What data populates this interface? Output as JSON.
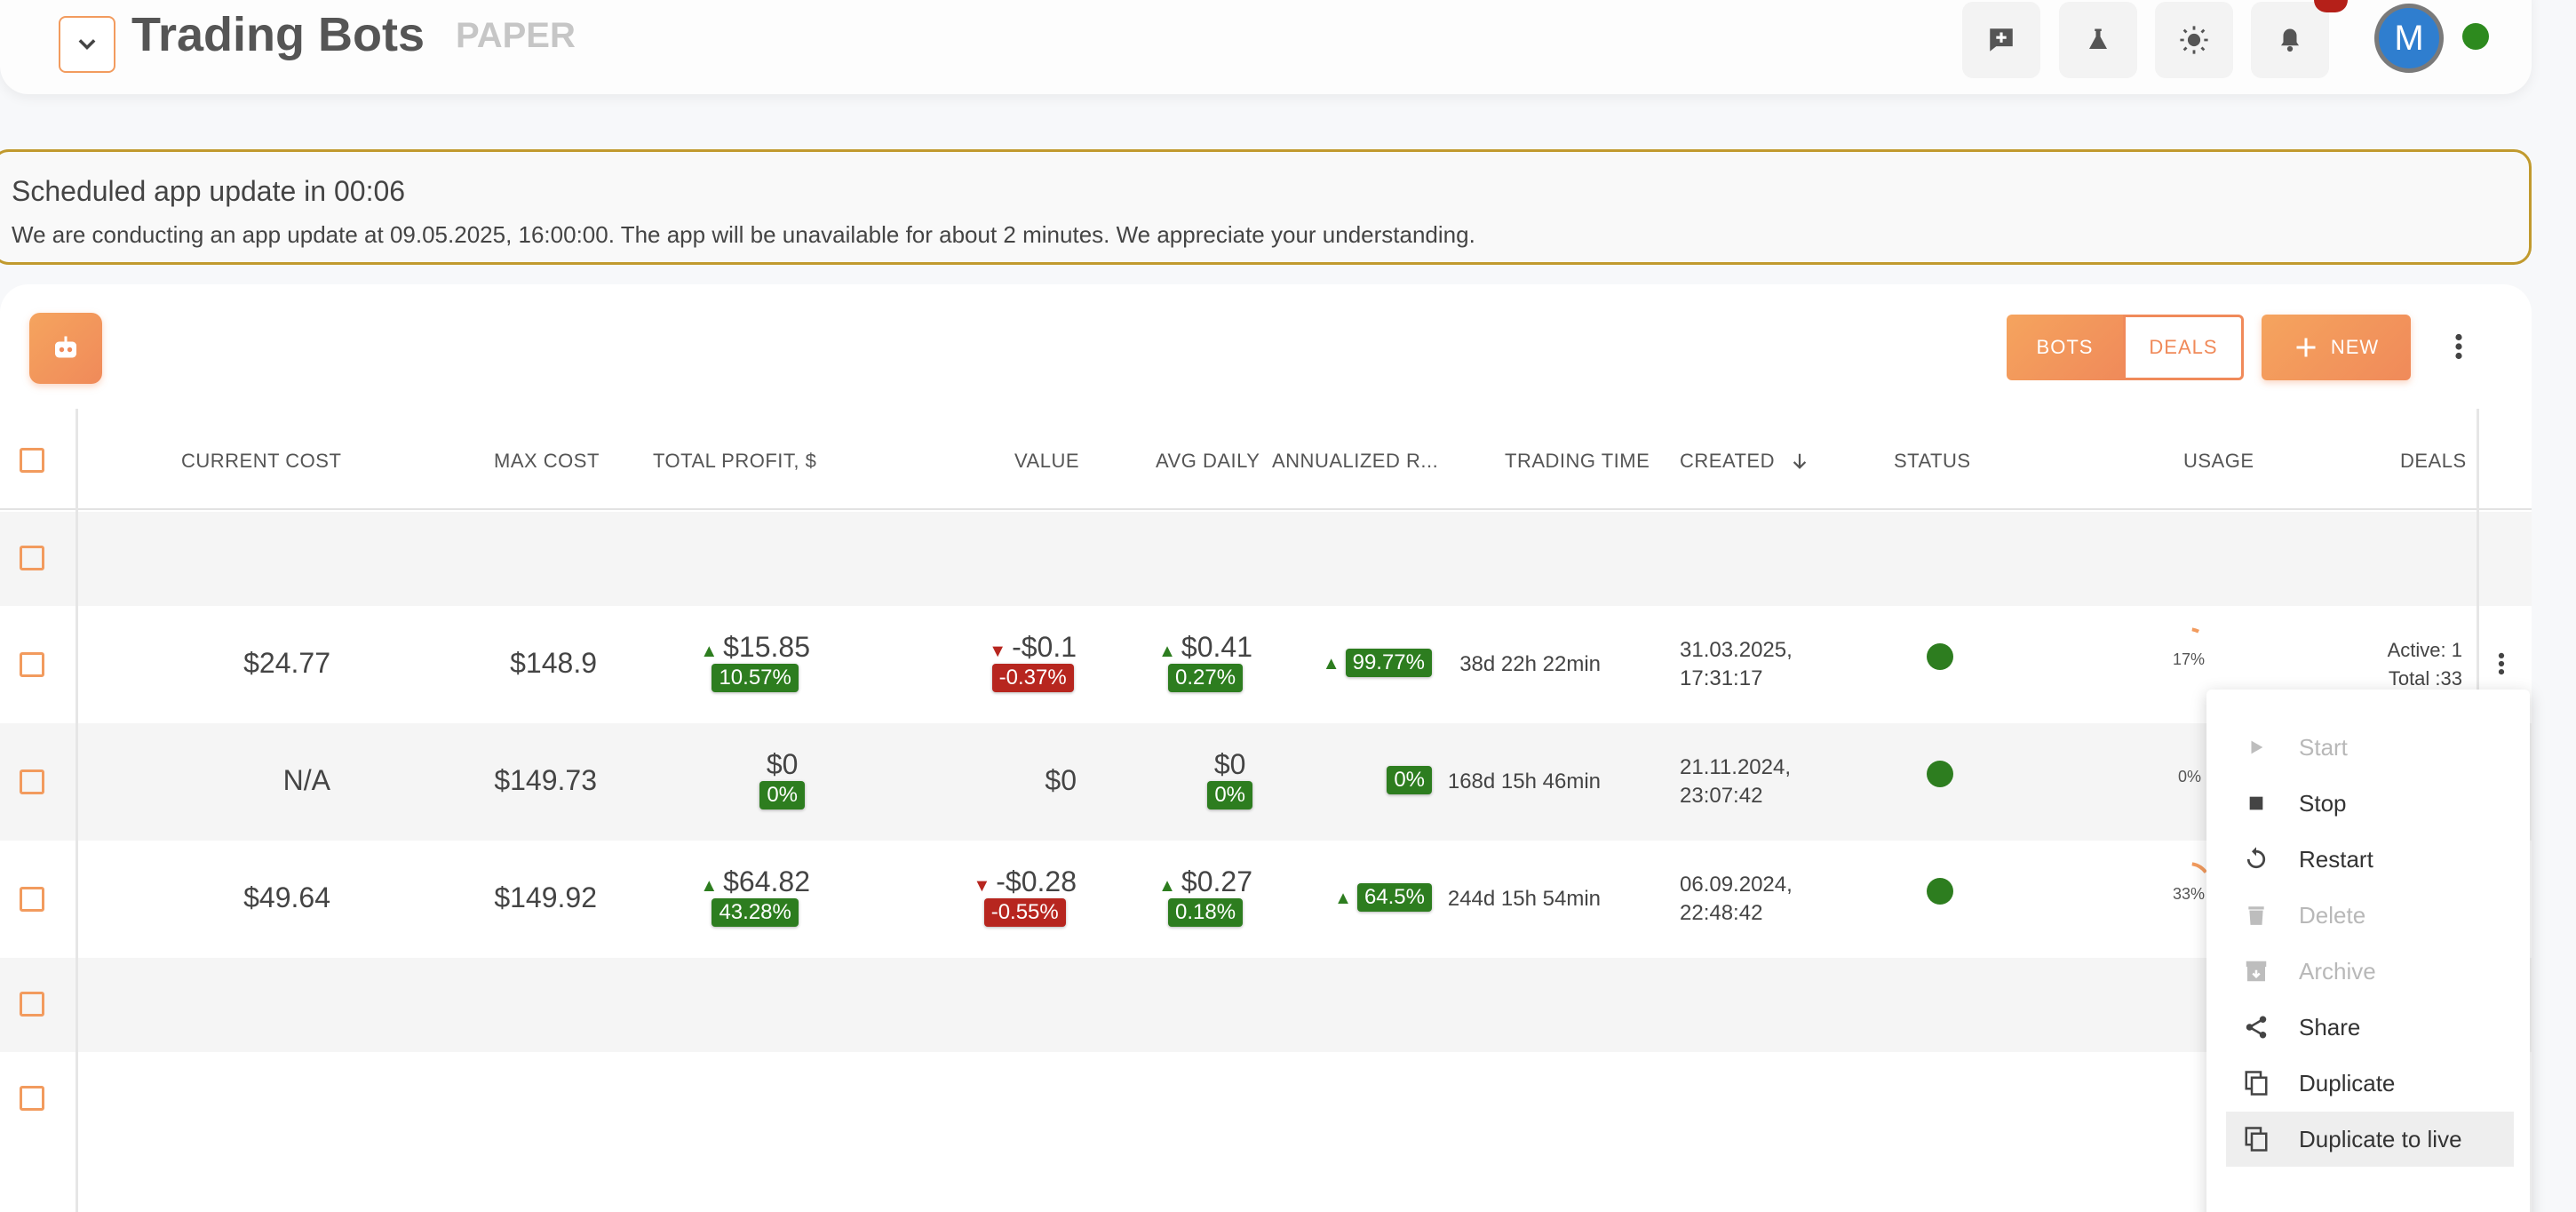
{
  "header": {
    "title": "Trading Bots",
    "mode": "PAPER",
    "user_initial": "M",
    "icons": [
      "add-comment-icon",
      "flask-icon",
      "sun-icon",
      "bell-icon",
      "chevron-down-icon"
    ]
  },
  "notice": {
    "title": "Scheduled app update in 00:06",
    "text": "We are conducting an app update at 09.05.2025, 16:00:00. The app will be unavailable for about 2 minutes. We appreciate your understanding."
  },
  "toolbar": {
    "tab_bots": "BOTS",
    "tab_deals": "DEALS",
    "new_label": "NEW",
    "active_tab": "BOTS"
  },
  "columns": {
    "current_cost": "CURRENT COST",
    "max_cost": "MAX COST",
    "total_profit": "TOTAL PROFIT, $",
    "value": "VALUE",
    "avg_daily": "AVG DAILY",
    "annualized": "ANNUALIZED R...",
    "trading_time": "TRADING TIME",
    "created": "CREATED",
    "status": "STATUS",
    "usage": "USAGE",
    "deals": "DEALS"
  },
  "rows": [
    {
      "current_cost": "$24.77",
      "max_cost": "$148.9",
      "total_profit": "$15.85",
      "total_profit_pct": "10.57%",
      "value": "-$0.1",
      "value_pct": "-0.37%",
      "avg_daily": "$0.41",
      "avg_daily_pct": "0.27%",
      "annualized": "99.77%",
      "trading_time": "38d 22h 22min",
      "created_date": "31.03.2025,",
      "created_time": "17:31:17",
      "usage": "17%",
      "usage_fraction": 0.17,
      "deals_active": "Active: 1",
      "deals_total": "Total :33"
    },
    {
      "current_cost": "N/A",
      "max_cost": "$149.73",
      "total_profit": "$0",
      "total_profit_pct": "0%",
      "value": "$0",
      "avg_daily": "$0",
      "avg_daily_pct": "0%",
      "annualized": "0%",
      "trading_time": "168d 15h 46min",
      "created_date": "21.11.2024,",
      "created_time": "23:07:42",
      "usage": "0%",
      "usage_fraction": 0
    },
    {
      "current_cost": "$49.64",
      "max_cost": "$149.92",
      "total_profit": "$64.82",
      "total_profit_pct": "43.28%",
      "value": "-$0.28",
      "value_pct": "-0.55%",
      "avg_daily": "$0.27",
      "avg_daily_pct": "0.18%",
      "annualized": "64.5%",
      "trading_time": "244d 15h 54min",
      "created_date": "06.09.2024,",
      "created_time": "22:48:42",
      "usage": "33%",
      "usage_fraction": 0.33
    }
  ],
  "menu": {
    "items": [
      {
        "label": "Start",
        "icon": "play-icon",
        "disabled": true
      },
      {
        "label": "Stop",
        "icon": "stop-icon",
        "disabled": false
      },
      {
        "label": "Restart",
        "icon": "restart-icon",
        "disabled": false
      },
      {
        "label": "Delete",
        "icon": "trash-icon",
        "disabled": true
      },
      {
        "label": "Archive",
        "icon": "archive-icon",
        "disabled": true
      },
      {
        "label": "Share",
        "icon": "share-icon",
        "disabled": false
      },
      {
        "label": "Duplicate",
        "icon": "copy-icon",
        "disabled": false
      },
      {
        "label": "Duplicate to live",
        "icon": "copy-icon",
        "disabled": false
      }
    ]
  },
  "colors": {
    "accent": "#f08a5a",
    "profit": "#2d7d1f",
    "loss": "#b7261f",
    "notice_border": "#c19a2e"
  }
}
